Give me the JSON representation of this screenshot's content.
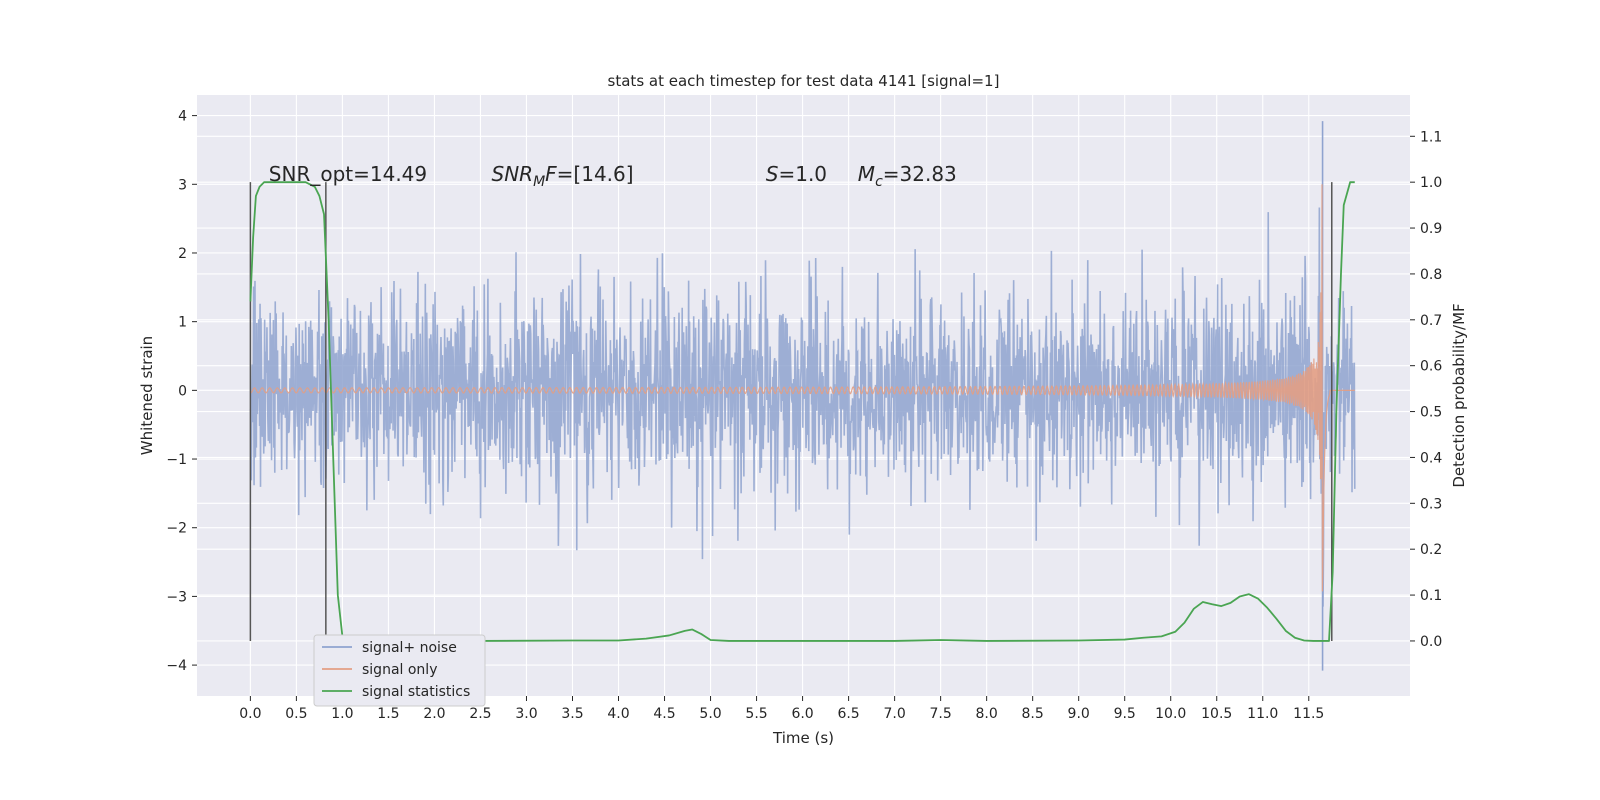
{
  "chart_data": {
    "type": "line",
    "title": "stats at each timestep for test data 4141 [signal=1]",
    "xlabel": "Time (s)",
    "ylabel": "Whitened strain",
    "y2label": "Detection probability/MF",
    "xlim": [
      -0.58,
      12.6
    ],
    "ylim": [
      -4.45,
      4.3
    ],
    "y2lim": [
      -0.12,
      1.19
    ],
    "xticks": [
      0.0,
      0.5,
      1.0,
      1.5,
      2.0,
      2.5,
      3.0,
      3.5,
      4.0,
      4.5,
      5.0,
      5.5,
      6.0,
      6.5,
      7.0,
      7.5,
      8.0,
      8.5,
      9.0,
      9.5,
      10.0,
      10.5,
      11.0,
      11.5
    ],
    "xtick_labels": [
      "0.0",
      "0.5",
      "1.0",
      "1.5",
      "2.0",
      "2.5",
      "3.0",
      "3.5",
      "4.0",
      "4.5",
      "5.0",
      "5.5",
      "6.0",
      "6.5",
      "7.0",
      "7.5",
      "8.0",
      "8.5",
      "9.0",
      "9.5",
      "10.0",
      "10.5",
      "11.0",
      "11.5"
    ],
    "yticks": [
      -4,
      -3,
      -2,
      -1,
      0,
      1,
      2,
      3,
      4
    ],
    "ytick_labels": [
      "−4",
      "−3",
      "−2",
      "−1",
      "0",
      "1",
      "2",
      "3",
      "4"
    ],
    "y2ticks": [
      0.0,
      0.1,
      0.2,
      0.3,
      0.4,
      0.5,
      0.6,
      0.7,
      0.8,
      0.9,
      1.0,
      1.1
    ],
    "y2tick_labels": [
      "0.0",
      "0.1",
      "0.2",
      "0.3",
      "0.4",
      "0.5",
      "0.6",
      "0.7",
      "0.8",
      "0.9",
      "1.0",
      "1.1"
    ],
    "grid": true,
    "legend_position": "lower-left",
    "series": [
      {
        "name": "signal+ noise",
        "color": "#8fa3cf",
        "x_range": [
          0.0,
          12.0
        ],
        "amplitude_typical": 1.2,
        "min": -4.08,
        "max": 3.92,
        "peak_time": 11.65
      },
      {
        "name": "signal only",
        "color": "#e39f84",
        "x_range": [
          0.0,
          12.0
        ],
        "merger_time": 11.65,
        "peak_amplitude": 3.0
      },
      {
        "name": "signal statistics",
        "color": "#4aa552",
        "axis": "right",
        "x": [
          0.0,
          0.03,
          0.06,
          0.1,
          0.15,
          0.2,
          0.3,
          0.45,
          0.6,
          0.7,
          0.75,
          0.8,
          0.85,
          0.9,
          0.95,
          1.0,
          1.05,
          1.1,
          1.5,
          2.5,
          3.5,
          4.0,
          4.3,
          4.55,
          4.72,
          4.8,
          4.9,
          5.0,
          5.2,
          6.0,
          7.0,
          7.5,
          8.0,
          9.0,
          9.5,
          9.7,
          9.9,
          10.05,
          10.15,
          10.25,
          10.35,
          10.45,
          10.55,
          10.65,
          10.75,
          10.85,
          10.95,
          11.05,
          11.15,
          11.25,
          11.35,
          11.45,
          11.55,
          11.65,
          11.72,
          11.76,
          11.8,
          11.85,
          11.88,
          11.95,
          12.0
        ],
        "y": [
          0.74,
          0.88,
          0.97,
          0.99,
          1.0,
          1.0,
          1.0,
          1.0,
          1.0,
          0.99,
          0.97,
          0.93,
          0.7,
          0.4,
          0.1,
          0.01,
          0.0,
          0.0,
          0.0,
          0.0,
          0.001,
          0.001,
          0.005,
          0.012,
          0.022,
          0.025,
          0.015,
          0.002,
          0.0,
          0.0,
          0.0,
          0.002,
          0.0,
          0.001,
          0.003,
          0.007,
          0.01,
          0.02,
          0.04,
          0.07,
          0.085,
          0.08,
          0.076,
          0.083,
          0.097,
          0.102,
          0.092,
          0.072,
          0.048,
          0.022,
          0.007,
          0.001,
          0.0,
          0.0,
          0.0,
          0.15,
          0.5,
          0.8,
          0.95,
          1.0,
          1.0
        ]
      }
    ],
    "vlines": [
      0.0,
      0.82,
      11.75
    ],
    "annotations": [
      {
        "text": "SNR_opt=14.49",
        "x": 0.2,
        "y": 3.05
      },
      {
        "text": "SNR",
        "x": 2.62,
        "y": 3.05,
        "italic": true,
        "sub": "M",
        "suffix": "F",
        "rest": "=[14.6]"
      },
      {
        "text": "S",
        "x": 5.6,
        "y": 3.05,
        "italic": true,
        "rest": "=1.0"
      },
      {
        "text": "M",
        "x": 6.6,
        "y": 3.05,
        "italic": true,
        "sub": "c",
        "rest": "=32.83"
      }
    ]
  }
}
